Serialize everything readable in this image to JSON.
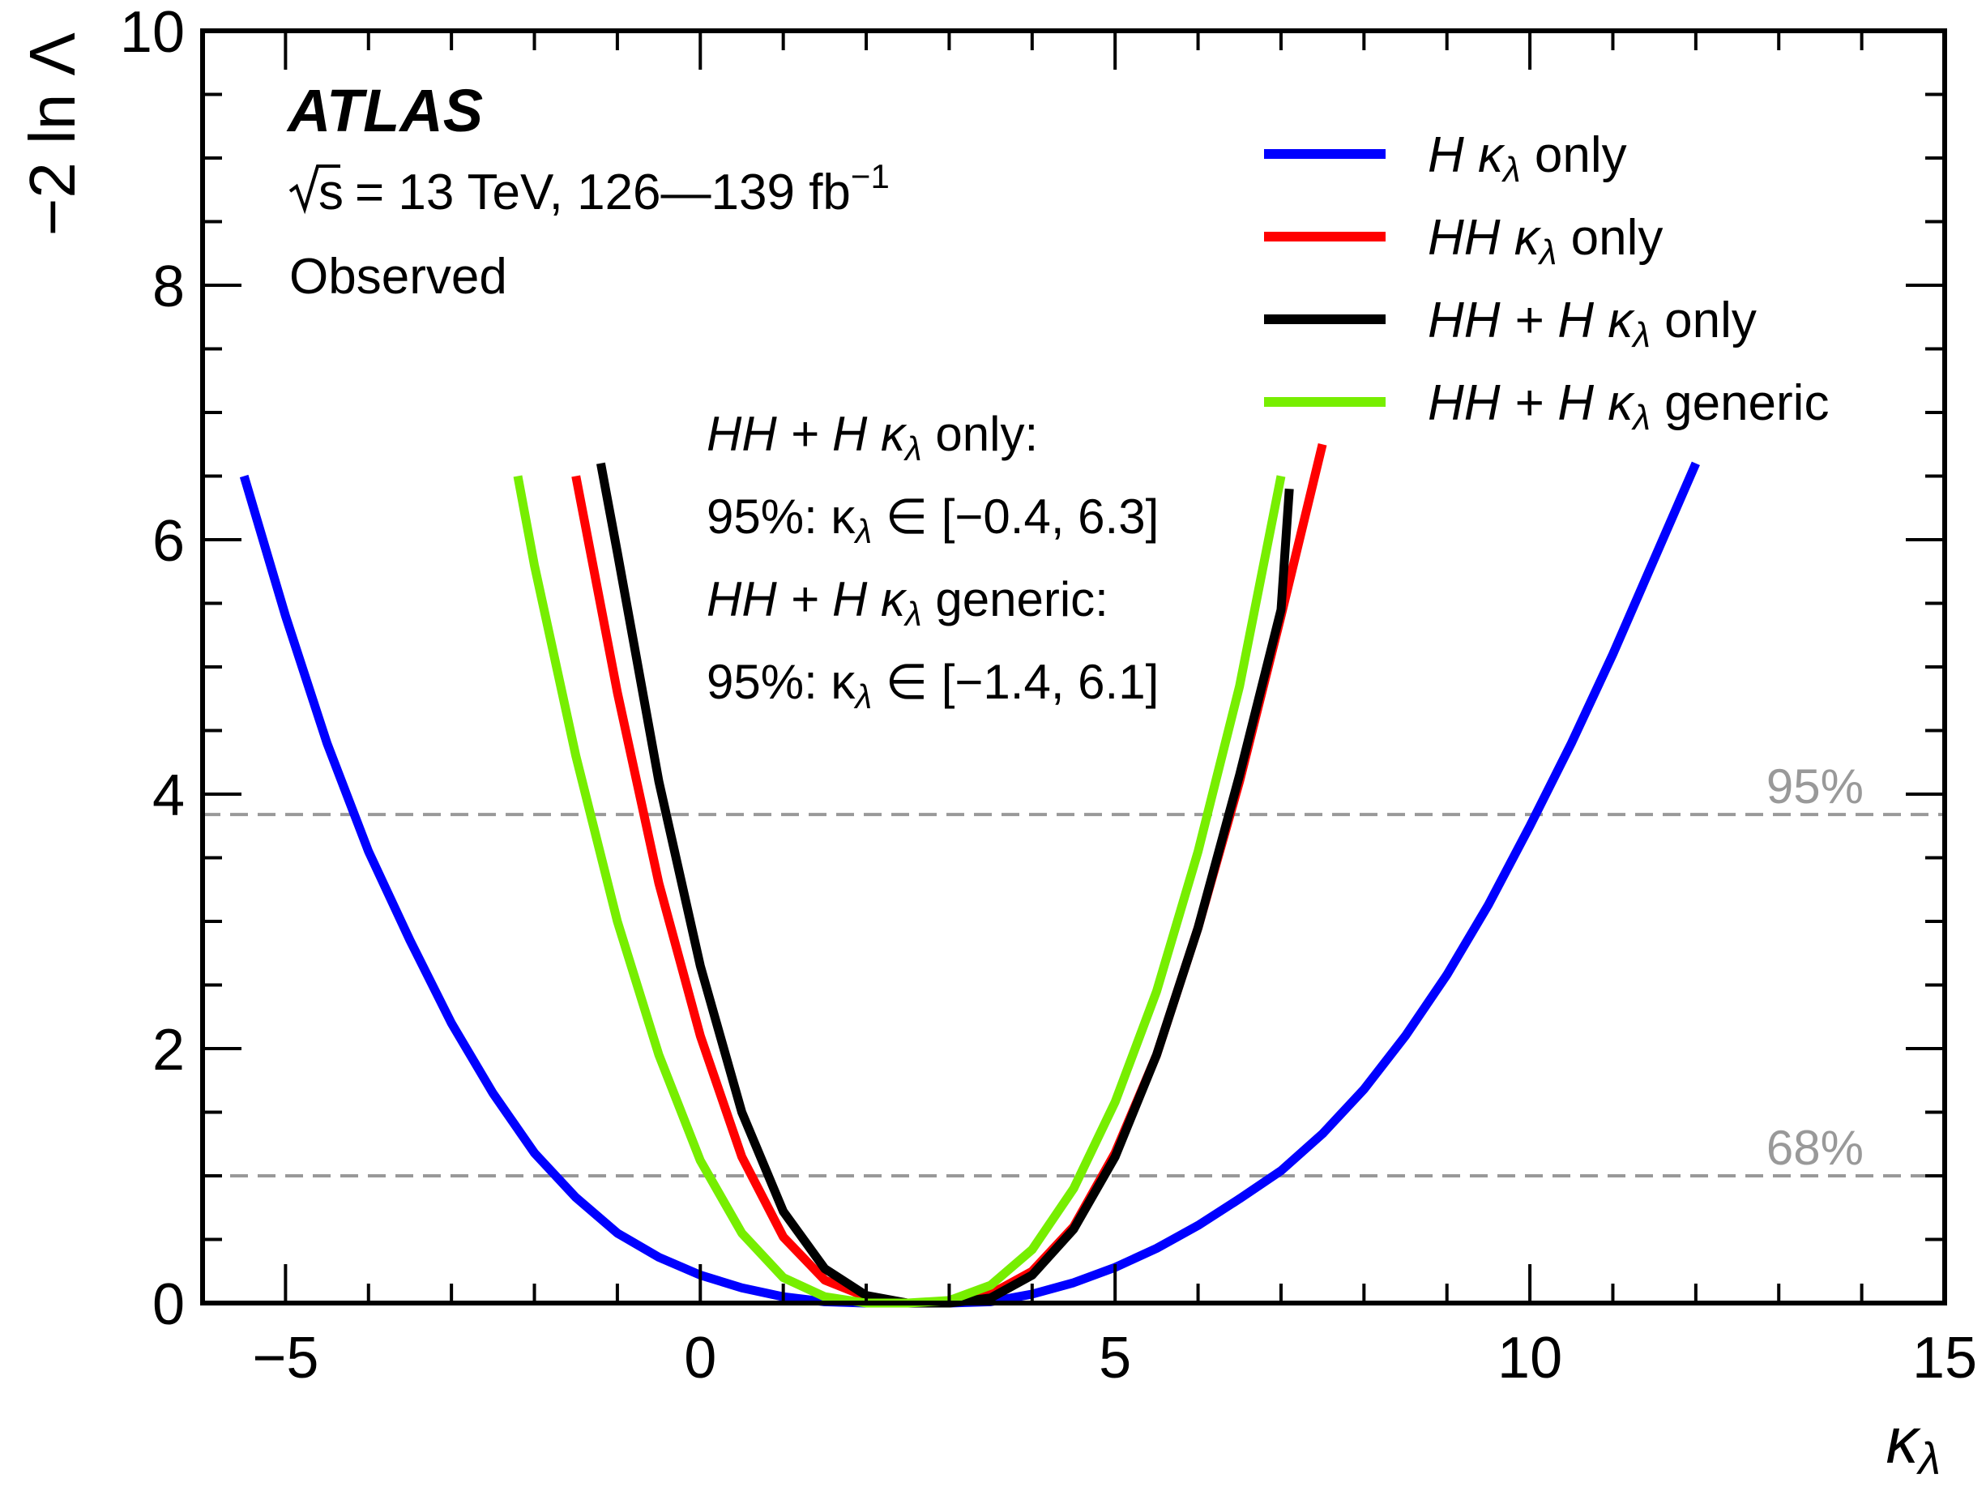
{
  "chart_data": {
    "type": "line",
    "title": "",
    "xlabel": "κ",
    "xlabel_sub": "λ",
    "ylabel": "−2 ln Λ",
    "xlim": [
      -6,
      15
    ],
    "ylim": [
      0,
      10
    ],
    "x_ticks": [
      {
        "value": -5,
        "label": "−5"
      },
      {
        "value": 0,
        "label": "0"
      },
      {
        "value": 5,
        "label": "5"
      },
      {
        "value": 10,
        "label": "10"
      },
      {
        "value": 15,
        "label": "15"
      }
    ],
    "y_ticks": [
      {
        "value": 0,
        "label": "0"
      },
      {
        "value": 2,
        "label": "2"
      },
      {
        "value": 4,
        "label": "4"
      },
      {
        "value": 6,
        "label": "6"
      },
      {
        "value": 8,
        "label": "8"
      },
      {
        "value": 10,
        "label": "10"
      }
    ],
    "reference_lines": [
      {
        "y": 3.84,
        "label": "95%",
        "color": "#999999"
      },
      {
        "y": 1.0,
        "label": "68%",
        "color": "#999999"
      }
    ],
    "series": [
      {
        "name": "H κλ only",
        "legend": {
          "pre": "H κ",
          "sub": "λ",
          "post": " only"
        },
        "color": "#0000ff",
        "points": [
          [
            -5.5,
            6.5
          ],
          [
            -5.0,
            5.4
          ],
          [
            -4.5,
            4.4
          ],
          [
            -4.0,
            3.55
          ],
          [
            -3.5,
            2.85
          ],
          [
            -3.0,
            2.2
          ],
          [
            -2.5,
            1.65
          ],
          [
            -2.0,
            1.18
          ],
          [
            -1.5,
            0.83
          ],
          [
            -1.0,
            0.55
          ],
          [
            -0.5,
            0.36
          ],
          [
            0.0,
            0.22
          ],
          [
            0.5,
            0.12
          ],
          [
            1.0,
            0.05
          ],
          [
            1.5,
            0.01
          ],
          [
            2.0,
            0.0
          ],
          [
            2.5,
            0.0
          ],
          [
            3.0,
            0.0
          ],
          [
            3.5,
            0.01
          ],
          [
            4.0,
            0.07
          ],
          [
            4.5,
            0.16
          ],
          [
            5.0,
            0.28
          ],
          [
            5.5,
            0.43
          ],
          [
            6.0,
            0.61
          ],
          [
            6.5,
            0.82
          ],
          [
            7.0,
            1.04
          ],
          [
            7.5,
            1.33
          ],
          [
            8.0,
            1.68
          ],
          [
            8.5,
            2.1
          ],
          [
            9.0,
            2.58
          ],
          [
            9.5,
            3.13
          ],
          [
            10.0,
            3.75
          ],
          [
            10.5,
            4.4
          ],
          [
            11.0,
            5.1
          ],
          [
            11.5,
            5.85
          ],
          [
            12.0,
            6.6
          ]
        ]
      },
      {
        "name": "HH κλ only",
        "legend": {
          "pre": "HH κ",
          "sub": "λ",
          "post": " only"
        },
        "color": "#ff0000",
        "points": [
          [
            -1.5,
            6.5
          ],
          [
            -1.0,
            4.8
          ],
          [
            -0.5,
            3.3
          ],
          [
            0.0,
            2.1
          ],
          [
            0.5,
            1.15
          ],
          [
            1.0,
            0.52
          ],
          [
            1.5,
            0.18
          ],
          [
            2.0,
            0.05
          ],
          [
            2.5,
            0.0
          ],
          [
            3.0,
            0.0
          ],
          [
            3.5,
            0.07
          ],
          [
            4.0,
            0.25
          ],
          [
            4.5,
            0.6
          ],
          [
            5.0,
            1.18
          ],
          [
            5.5,
            1.95
          ],
          [
            6.0,
            2.95
          ],
          [
            6.5,
            4.1
          ],
          [
            7.0,
            5.4
          ],
          [
            7.5,
            6.75
          ]
        ]
      },
      {
        "name": "HH + H κλ only",
        "legend": {
          "pre": "HH + H κ",
          "sub": "λ",
          "post": " only"
        },
        "color": "#000000",
        "points": [
          [
            -1.2,
            6.6
          ],
          [
            -1.0,
            5.9
          ],
          [
            -0.5,
            4.1
          ],
          [
            0.0,
            2.65
          ],
          [
            0.5,
            1.5
          ],
          [
            1.0,
            0.72
          ],
          [
            1.5,
            0.27
          ],
          [
            2.0,
            0.06
          ],
          [
            2.5,
            0.0
          ],
          [
            3.0,
            0.0
          ],
          [
            3.5,
            0.04
          ],
          [
            4.0,
            0.22
          ],
          [
            4.5,
            0.58
          ],
          [
            5.0,
            1.15
          ],
          [
            5.5,
            1.95
          ],
          [
            6.0,
            2.95
          ],
          [
            6.5,
            4.15
          ],
          [
            7.0,
            5.45
          ],
          [
            7.1,
            6.4
          ]
        ]
      },
      {
        "name": "HH + H κλ generic",
        "legend": {
          "pre": "HH + H κ",
          "sub": "λ",
          "post": " generic"
        },
        "color": "#77ee00",
        "points": [
          [
            -2.2,
            6.5
          ],
          [
            -2.0,
            5.8
          ],
          [
            -1.5,
            4.3
          ],
          [
            -1.0,
            3.0
          ],
          [
            -0.5,
            1.95
          ],
          [
            0.0,
            1.12
          ],
          [
            0.5,
            0.55
          ],
          [
            1.0,
            0.2
          ],
          [
            1.5,
            0.05
          ],
          [
            2.0,
            0.0
          ],
          [
            2.5,
            0.0
          ],
          [
            3.0,
            0.02
          ],
          [
            3.5,
            0.14
          ],
          [
            4.0,
            0.42
          ],
          [
            4.5,
            0.9
          ],
          [
            5.0,
            1.58
          ],
          [
            5.5,
            2.45
          ],
          [
            6.0,
            3.55
          ],
          [
            6.5,
            4.85
          ],
          [
            7.0,
            6.5
          ]
        ]
      }
    ]
  },
  "annotations": {
    "atlas": "ATLAS",
    "sqrt_s": "s",
    "energy": "= 13 TeV, 126—139 fb",
    "energy_sup": "−1",
    "observed": "Observed",
    "note1": {
      "pre": "HH + H κ",
      "sub": "λ",
      "post": " only:"
    },
    "note2": {
      "pre": "95%: κ",
      "sub": "λ",
      "post": " ∈ [−0.4, 6.3]"
    },
    "note3": {
      "pre": "HH + H κ",
      "sub": "λ",
      "post": " generic:"
    },
    "note4": {
      "pre": "95%: κ",
      "sub": "λ",
      "post": " ∈ [−1.4, 6.1]"
    }
  }
}
